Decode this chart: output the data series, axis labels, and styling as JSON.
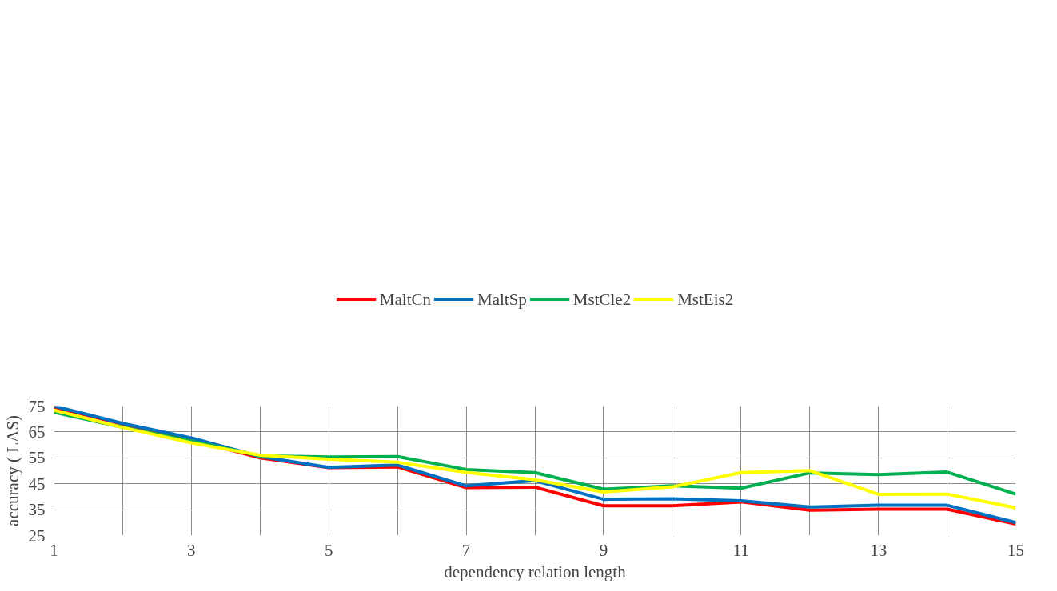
{
  "chart_data": {
    "type": "line",
    "xlabel": "dependency relation length",
    "ylabel": "accuracy ( LAS)",
    "x": [
      1,
      2,
      3,
      4,
      5,
      6,
      7,
      8,
      9,
      10,
      11,
      12,
      13,
      14,
      15
    ],
    "series": [
      {
        "name": "MaltCn",
        "color": "#ff0000",
        "values": [
          74.6,
          68.0,
          62.0,
          55.0,
          51.2,
          51.5,
          43.5,
          43.7,
          36.5,
          36.5,
          38.0,
          34.8,
          35.2,
          35.2,
          29.5
        ]
      },
      {
        "name": "MaltSp",
        "color": "#0070c0",
        "values": [
          75.0,
          68.3,
          62.7,
          55.5,
          51.3,
          52.2,
          44.2,
          46.2,
          39.0,
          39.2,
          38.4,
          36.0,
          36.7,
          36.7,
          30.0
        ]
      },
      {
        "name": "MstCle2",
        "color": "#00b050",
        "values": [
          72.6,
          66.8,
          61.5,
          55.8,
          55.3,
          55.5,
          50.5,
          49.3,
          42.9,
          44.2,
          43.3,
          49.2,
          48.5,
          49.5,
          41.0
        ]
      },
      {
        "name": "MstEis2",
        "color": "#ffff00",
        "values": [
          73.4,
          66.7,
          60.8,
          56.0,
          54.5,
          53.3,
          49.4,
          46.5,
          41.8,
          43.8,
          49.3,
          50.1,
          40.9,
          41.0,
          35.7
        ]
      }
    ],
    "xlim": [
      1,
      15
    ],
    "ylim": [
      25,
      75
    ],
    "xticks": [
      1,
      {
        "value": 2,
        "label": null
      },
      3,
      {
        "value": 4,
        "label": null
      },
      5,
      {
        "value": 6,
        "label": null
      },
      7,
      {
        "value": 8,
        "label": null
      },
      9,
      {
        "value": 10,
        "label": null
      },
      11,
      {
        "value": 12,
        "label": null
      },
      13,
      {
        "value": 14,
        "label": null
      },
      15
    ],
    "yticks": [
      25,
      35,
      45,
      55,
      65,
      75
    ],
    "grid": true,
    "legend": "top",
    "marker": "none",
    "line_style": "solid"
  }
}
